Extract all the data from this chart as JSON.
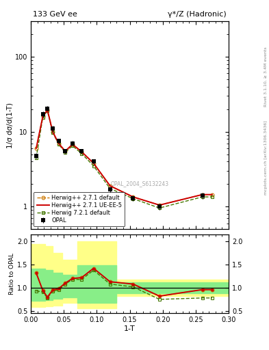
{
  "title_left": "133 GeV ee",
  "title_right": "γ*/Z (Hadronic)",
  "right_label_top": "Rivet 3.1.10, ≥ 3.4M events",
  "right_label_bot": "mcplots.cern.ch [arXiv:1306.3436]",
  "watermark": "OPAL_2004_S6132243",
  "xlabel": "1-T",
  "ylabel_main": "1/σ dσ/d(1-T)",
  "ylabel_ratio": "Ratio to OPAL",
  "opal_x": [
    0.008,
    0.018,
    0.025,
    0.033,
    0.042,
    0.052,
    0.063,
    0.077,
    0.095,
    0.12,
    0.155,
    0.195,
    0.26
  ],
  "opal_y": [
    4.8,
    17.0,
    20.5,
    11.0,
    7.5,
    5.5,
    7.0,
    5.5,
    4.0,
    1.7,
    1.3,
    1.0,
    1.4
  ],
  "opal_yerr": [
    0.4,
    1.5,
    1.5,
    1.0,
    0.6,
    0.4,
    0.5,
    0.4,
    0.3,
    0.15,
    0.12,
    0.09,
    0.12
  ],
  "hw271_x": [
    0.008,
    0.018,
    0.025,
    0.033,
    0.042,
    0.052,
    0.063,
    0.077,
    0.095,
    0.12,
    0.155,
    0.195,
    0.26,
    0.275
  ],
  "hw271_y": [
    6.0,
    16.0,
    19.5,
    10.0,
    7.0,
    5.5,
    6.8,
    5.4,
    3.8,
    1.9,
    1.35,
    1.05,
    1.45,
    1.45
  ],
  "hw271ue_x": [
    0.008,
    0.018,
    0.025,
    0.033,
    0.042,
    0.052,
    0.063,
    0.077,
    0.095,
    0.12,
    0.155,
    0.195,
    0.26,
    0.275
  ],
  "hw271ue_y": [
    6.0,
    16.0,
    19.5,
    10.0,
    7.0,
    5.5,
    6.8,
    5.4,
    3.8,
    1.9,
    1.35,
    1.05,
    1.45,
    1.45
  ],
  "hw721_x": [
    0.008,
    0.018,
    0.025,
    0.033,
    0.042,
    0.052,
    0.063,
    0.077,
    0.095,
    0.12,
    0.155,
    0.195,
    0.26,
    0.275
  ],
  "hw721_y": [
    4.5,
    15.5,
    19.0,
    9.8,
    6.8,
    5.3,
    6.5,
    5.1,
    3.5,
    1.75,
    1.28,
    0.96,
    1.35,
    1.35
  ],
  "ratio_opal_band_yellow_intervals": [
    [
      0.0,
      0.012,
      0.58,
      1.95
    ],
    [
      0.012,
      0.022,
      0.58,
      1.95
    ],
    [
      0.022,
      0.033,
      0.6,
      1.9
    ],
    [
      0.033,
      0.048,
      0.62,
      1.75
    ],
    [
      0.048,
      0.07,
      0.68,
      1.6
    ],
    [
      0.07,
      0.09,
      0.55,
      2.0
    ],
    [
      0.09,
      0.13,
      0.55,
      2.0
    ],
    [
      0.13,
      0.3,
      0.82,
      1.18
    ]
  ],
  "ratio_opal_band_green_intervals": [
    [
      0.0,
      0.012,
      0.72,
      1.42
    ],
    [
      0.012,
      0.022,
      0.72,
      1.42
    ],
    [
      0.022,
      0.033,
      0.74,
      1.38
    ],
    [
      0.033,
      0.048,
      0.76,
      1.32
    ],
    [
      0.048,
      0.07,
      0.8,
      1.28
    ],
    [
      0.07,
      0.09,
      0.68,
      1.48
    ],
    [
      0.09,
      0.13,
      0.68,
      1.48
    ],
    [
      0.13,
      0.3,
      0.88,
      1.12
    ]
  ],
  "ratio_hw271_x": [
    0.008,
    0.018,
    0.025,
    0.033,
    0.042,
    0.052,
    0.063,
    0.077,
    0.095,
    0.12,
    0.155,
    0.195,
    0.26,
    0.275
  ],
  "ratio_hw271_y": [
    1.32,
    0.94,
    0.8,
    0.95,
    0.98,
    1.1,
    1.2,
    1.22,
    1.42,
    1.13,
    1.08,
    0.82,
    0.96,
    0.96
  ],
  "ratio_hw271ue_x": [
    0.008,
    0.018,
    0.025,
    0.033,
    0.042,
    0.052,
    0.063,
    0.077,
    0.095,
    0.12,
    0.155,
    0.195,
    0.26,
    0.275
  ],
  "ratio_hw271ue_y": [
    1.32,
    0.94,
    0.8,
    0.95,
    0.98,
    1.1,
    1.2,
    1.22,
    1.42,
    1.13,
    1.08,
    0.82,
    0.96,
    0.96
  ],
  "ratio_hw721_x": [
    0.008,
    0.018,
    0.025,
    0.033,
    0.042,
    0.052,
    0.063,
    0.077,
    0.095,
    0.12,
    0.155,
    0.195,
    0.26,
    0.275
  ],
  "ratio_hw721_y": [
    0.93,
    0.91,
    0.78,
    0.93,
    0.95,
    1.08,
    1.18,
    1.18,
    1.38,
    1.08,
    1.02,
    0.75,
    0.78,
    0.78
  ],
  "color_opal": "#000000",
  "color_hw271": "#cc7700",
  "color_hw271ue": "#cc0000",
  "color_hw721": "#447700",
  "color_yellow": "#ffff88",
  "color_green_band": "#88ee88",
  "xlim": [
    0.0,
    0.3
  ],
  "ylim_main": [
    0.5,
    300
  ],
  "ylim_ratio": [
    0.45,
    2.15
  ],
  "ratio_yticks": [
    0.5,
    1.0,
    1.5,
    2.0
  ]
}
